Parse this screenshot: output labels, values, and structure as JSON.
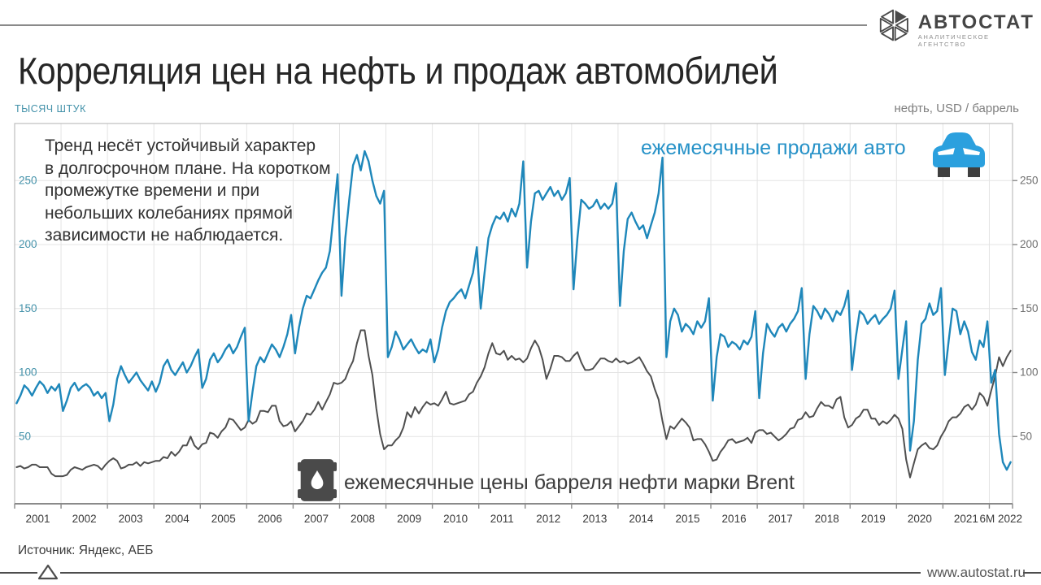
{
  "header": {
    "logo_title": "АВТОСТАТ",
    "logo_subtitle": "АНАЛИТИЧЕСКОЕ АГЕНТСТВО"
  },
  "title": "Корреляция цен на нефть и продаж автомобилей",
  "annotation": {
    "lines": [
      "Тренд несёт устойчивый характер",
      "в долгосрочном плане. На коротком",
      "промежутке времени и при",
      "небольших колебаниях прямой",
      "зависимости не наблюдается."
    ]
  },
  "legend": {
    "sales_label": "ежемесячные продажи авто",
    "oil_label": "ежемесячные цены барреля нефти марки Brent"
  },
  "footer": {
    "source": "Источник: Яндекс, АЕБ",
    "website": "www.autostat.ru"
  },
  "colors": {
    "sales_line": "#1e87ba",
    "oil_line": "#4f4f4f",
    "left_axis_text": "#4492aa",
    "right_axis_text": "#6f6f6f",
    "x_axis_text": "#3a3a3a",
    "grid": "#e4e4e4",
    "border": "#bdbdbd",
    "car_icon_blue": "#2ba0de"
  },
  "chart_data": {
    "type": "line",
    "frequency": "monthly",
    "x_start": "2001-01",
    "x_end": "2022-06",
    "ylabel_left": "ТЫСЯЧ ШТУК",
    "ylabel_right": "нефть, USD / баррель",
    "ylim": [
      0,
      295
    ],
    "y_ticks": [
      50,
      100,
      150,
      200,
      250
    ],
    "x_tick_labels": [
      "2001",
      "2002",
      "2003",
      "2004",
      "2005",
      "2006",
      "2007",
      "2008",
      "2009",
      "2010",
      "2011",
      "2012",
      "2013",
      "2014",
      "2015",
      "2016",
      "2017",
      "2018",
      "2019",
      "2020",
      "2021",
      "6M 2022"
    ],
    "series": [
      {
        "name": "ежемесячные продажи авто",
        "unit": "тысяч штук",
        "color": "#1e87ba",
        "values": [
          76,
          82,
          90,
          87,
          82,
          88,
          93,
          90,
          84,
          89,
          86,
          91,
          70,
          78,
          88,
          92,
          86,
          89,
          91,
          88,
          82,
          85,
          80,
          84,
          62,
          75,
          95,
          105,
          98,
          92,
          96,
          100,
          94,
          90,
          86,
          93,
          85,
          92,
          105,
          110,
          102,
          98,
          103,
          108,
          100,
          105,
          112,
          118,
          88,
          95,
          110,
          115,
          108,
          112,
          118,
          122,
          115,
          120,
          128,
          135,
          62,
          85,
          105,
          112,
          108,
          115,
          122,
          118,
          112,
          120,
          130,
          145,
          115,
          135,
          150,
          160,
          158,
          165,
          172,
          178,
          182,
          195,
          225,
          255,
          160,
          205,
          235,
          262,
          270,
          258,
          273,
          265,
          250,
          238,
          232,
          242,
          112,
          120,
          132,
          126,
          118,
          122,
          126,
          120,
          115,
          118,
          116,
          126,
          108,
          118,
          135,
          148,
          155,
          158,
          162,
          165,
          158,
          168,
          178,
          198,
          150,
          178,
          205,
          215,
          222,
          220,
          225,
          218,
          228,
          222,
          232,
          265,
          182,
          218,
          240,
          242,
          235,
          240,
          245,
          238,
          242,
          235,
          240,
          252,
          165,
          205,
          235,
          232,
          228,
          230,
          235,
          228,
          232,
          228,
          232,
          248,
          152,
          195,
          220,
          225,
          218,
          212,
          215,
          205,
          215,
          225,
          240,
          268,
          112,
          140,
          150,
          145,
          132,
          138,
          135,
          130,
          140,
          135,
          140,
          158,
          78,
          112,
          130,
          128,
          120,
          124,
          122,
          118,
          125,
          122,
          128,
          148,
          80,
          115,
          138,
          132,
          128,
          135,
          138,
          132,
          138,
          142,
          148,
          166,
          95,
          130,
          152,
          148,
          142,
          150,
          146,
          140,
          148,
          145,
          152,
          164,
          102,
          128,
          148,
          145,
          138,
          142,
          145,
          138,
          142,
          145,
          150,
          164,
          95,
          118,
          140,
          39,
          62,
          110,
          138,
          142,
          154,
          145,
          148,
          166,
          98,
          125,
          150,
          148,
          130,
          140,
          132,
          116,
          110,
          125,
          120,
          140,
          92,
          102,
          52,
          30,
          24,
          30
        ]
      },
      {
        "name": "ежемесячные цены барреля нефти марки Brent",
        "unit": "USD / баррель",
        "color": "#4f4f4f",
        "values": [
          26,
          27,
          25,
          26,
          28,
          28,
          26,
          26,
          26,
          21,
          19,
          19,
          19,
          20,
          24,
          26,
          25,
          24,
          26,
          27,
          28,
          27,
          24,
          28,
          31,
          33,
          31,
          25,
          26,
          28,
          28,
          30,
          27,
          30,
          29,
          30,
          31,
          31,
          34,
          33,
          38,
          35,
          38,
          43,
          43,
          50,
          43,
          40,
          44,
          45,
          53,
          52,
          49,
          54,
          57,
          64,
          63,
          59,
          55,
          57,
          63,
          60,
          62,
          70,
          70,
          69,
          74,
          74,
          62,
          58,
          59,
          62,
          54,
          58,
          62,
          68,
          67,
          71,
          77,
          71,
          77,
          83,
          92,
          91,
          92,
          95,
          103,
          109,
          123,
          133,
          133,
          113,
          98,
          72,
          52,
          40,
          43,
          43,
          47,
          50,
          57,
          69,
          65,
          73,
          68,
          73,
          77,
          75,
          76,
          74,
          79,
          85,
          76,
          75,
          76,
          77,
          78,
          83,
          85,
          92,
          97,
          104,
          115,
          123,
          115,
          114,
          117,
          110,
          113,
          110,
          111,
          108,
          111,
          119,
          125,
          120,
          110,
          95,
          103,
          113,
          113,
          112,
          109,
          109,
          113,
          116,
          108,
          102,
          102,
          103,
          107,
          111,
          111,
          109,
          108,
          111,
          108,
          109,
          107,
          108,
          110,
          112,
          107,
          101,
          97,
          87,
          79,
          62,
          48,
          58,
          56,
          60,
          64,
          61,
          57,
          47,
          48,
          48,
          44,
          38,
          31,
          32,
          38,
          42,
          47,
          48,
          45,
          46,
          47,
          49,
          45,
          53,
          55,
          55,
          52,
          53,
          50,
          47,
          49,
          52,
          56,
          57,
          63,
          64,
          69,
          65,
          66,
          72,
          77,
          74,
          74,
          72,
          79,
          81,
          65,
          57,
          59,
          64,
          66,
          71,
          71,
          64,
          64,
          59,
          62,
          60,
          63,
          67,
          64,
          56,
          32,
          18,
          29,
          40,
          43,
          45,
          41,
          40,
          43,
          50,
          55,
          62,
          65,
          65,
          68,
          73,
          75,
          71,
          75,
          84,
          81,
          74,
          86,
          97,
          112,
          105,
          112,
          117
        ]
      }
    ]
  }
}
